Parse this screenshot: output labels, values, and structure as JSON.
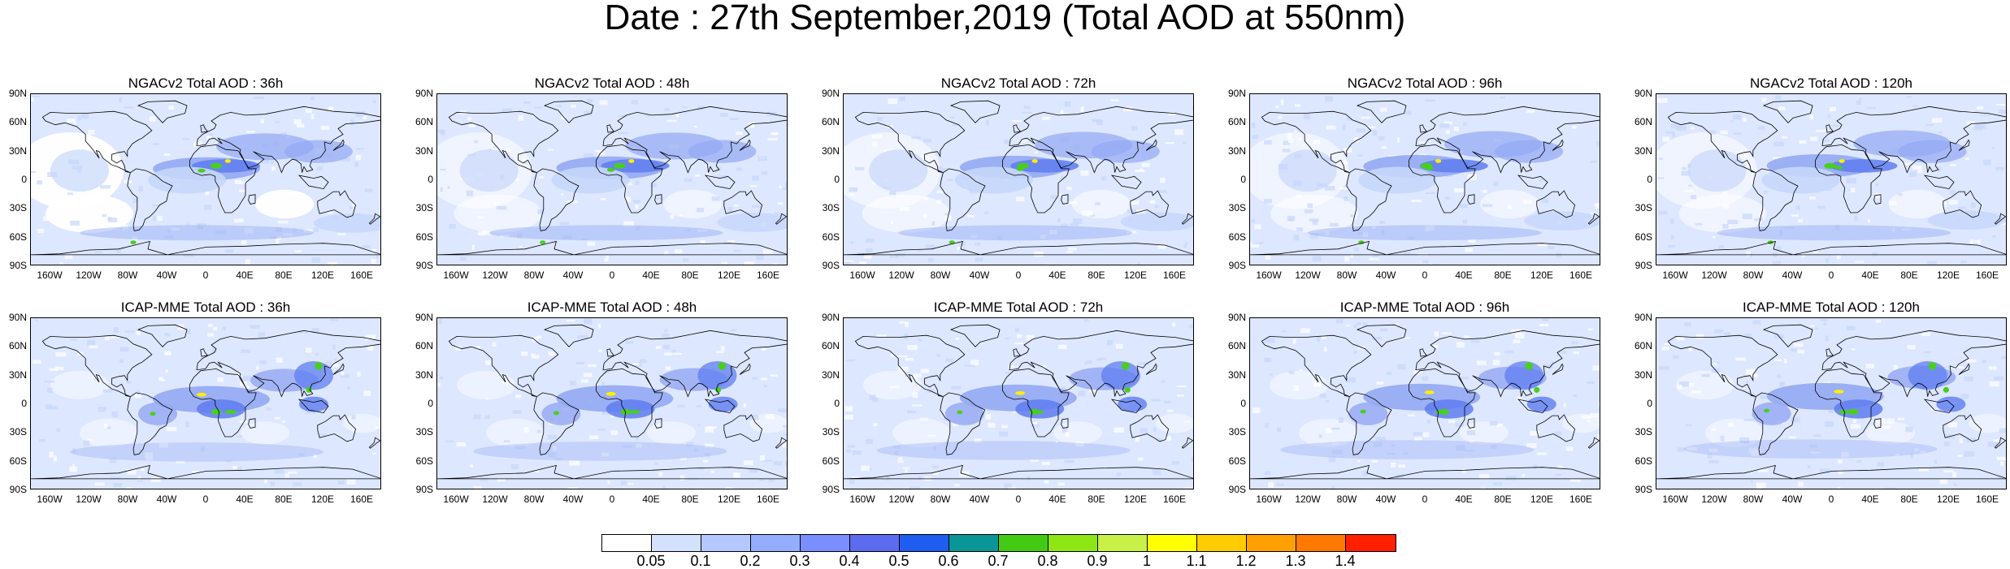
{
  "figure": {
    "title": "Date : 27th September,2019 (Total AOD at 550nm)"
  },
  "chart_data": {
    "type": "map",
    "panels": [
      {
        "row": 0,
        "col": 0,
        "model": "NGACv2",
        "title": "NGACv2 Total AOD : 36h",
        "lead_hours": 36
      },
      {
        "row": 0,
        "col": 1,
        "model": "NGACv2",
        "title": "NGACv2 Total AOD : 48h",
        "lead_hours": 48
      },
      {
        "row": 0,
        "col": 2,
        "model": "NGACv2",
        "title": "NGACv2 Total AOD : 72h",
        "lead_hours": 72
      },
      {
        "row": 0,
        "col": 3,
        "model": "NGACv2",
        "title": "NGACv2 Total AOD : 96h",
        "lead_hours": 96
      },
      {
        "row": 0,
        "col": 4,
        "model": "NGACv2",
        "title": "NGACv2 Total AOD : 120h",
        "lead_hours": 120
      },
      {
        "row": 1,
        "col": 0,
        "model": "ICAP-MME",
        "title": "ICAP-MME Total AOD : 36h",
        "lead_hours": 36
      },
      {
        "row": 1,
        "col": 1,
        "model": "ICAP-MME",
        "title": "ICAP-MME Total AOD : 48h",
        "lead_hours": 48
      },
      {
        "row": 1,
        "col": 2,
        "model": "ICAP-MME",
        "title": "ICAP-MME Total AOD : 72h",
        "lead_hours": 72
      },
      {
        "row": 1,
        "col": 3,
        "model": "ICAP-MME",
        "title": "ICAP-MME Total AOD : 96h",
        "lead_hours": 96
      },
      {
        "row": 1,
        "col": 4,
        "model": "ICAP-MME",
        "title": "ICAP-MME Total AOD : 120h",
        "lead_hours": 120
      }
    ],
    "lat_ticks": [
      "90N",
      "60N",
      "30N",
      "0",
      "30S",
      "60S",
      "90S"
    ],
    "lon_ticks": [
      "160W",
      "120W",
      "80W",
      "40W",
      "0",
      "40E",
      "80E",
      "120E",
      "160E"
    ],
    "lat_range": [
      -90,
      90
    ],
    "lon_range": [
      -180,
      180
    ],
    "colorbar": {
      "levels": [
        "0.05",
        "0.1",
        "0.2",
        "0.3",
        "0.4",
        "0.5",
        "0.6",
        "0.7",
        "0.8",
        "0.9",
        "1",
        "1.1",
        "1.2",
        "1.3",
        "1.4"
      ],
      "colors": [
        "#ffffff",
        "#d3e1ff",
        "#b4c8ff",
        "#94adff",
        "#7b8eff",
        "#5d6bef",
        "#1f5cf0",
        "#0a9696",
        "#44ca14",
        "#8ee614",
        "#c8f046",
        "#ffff00",
        "#ffcc00",
        "#ffa000",
        "#ff7800",
        "#ff2000"
      ]
    },
    "colors": {
      "ocean_background": "#dde7ff",
      "background_low": "#c7d7fb",
      "plume_mid": "#93a8f3",
      "plume_high": "#5f7df0",
      "hotspot_green": "#48cf1d",
      "hotspot_yellow": "#ffee00",
      "coastline": "#000000"
    }
  }
}
